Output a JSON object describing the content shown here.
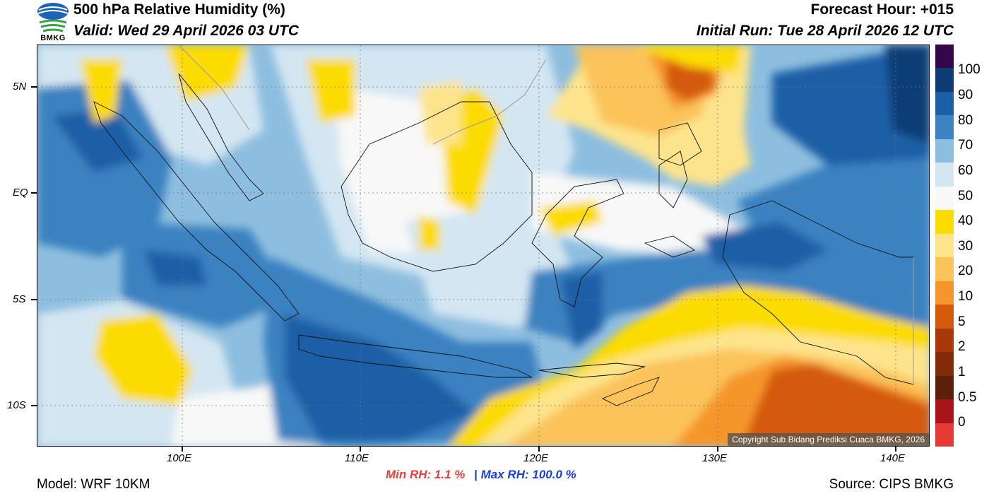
{
  "header": {
    "title": "500 hPa Relative Humidity (%)",
    "valid": "Valid: Wed 29 April 2026 03 UTC",
    "forecast_hour": "Forecast Hour: +015",
    "initial_run": "Initial Run: Tue 28 April 2026 12 UTC",
    "logo_text": "BMKG"
  },
  "axes": {
    "lat_labels": [
      "5N",
      "EQ",
      "5S",
      "10S"
    ],
    "lon_labels": [
      "100E",
      "110E",
      "120E",
      "130E",
      "140E"
    ]
  },
  "colorbar": {
    "labels": [
      "100",
      "90",
      "80",
      "70",
      "60",
      "50",
      "40",
      "30",
      "20",
      "10",
      "5",
      "2",
      "1",
      "0.5",
      "0"
    ],
    "colors": [
      "#34064c",
      "#0d3c74",
      "#1d5fa6",
      "#3b82c1",
      "#8ebedf",
      "#d3e6f2",
      "#f8f8f8",
      "#fcdb00",
      "#fde48c",
      "#fbc35a",
      "#f5962c",
      "#d55a0c",
      "#a8380a",
      "#822b08",
      "#5a200a",
      "#a8141a",
      "#e53935"
    ]
  },
  "stats": {
    "min": "Min RH:   1.1 %",
    "separator": "|",
    "max": "Max RH: 100.0 %"
  },
  "copyright": "Copyright Sub Bidang Prediksi Cuaca BMKG, 2026",
  "footer": {
    "model": "Model: WRF 10KM",
    "source": "Source: CIPS BMKG"
  }
}
